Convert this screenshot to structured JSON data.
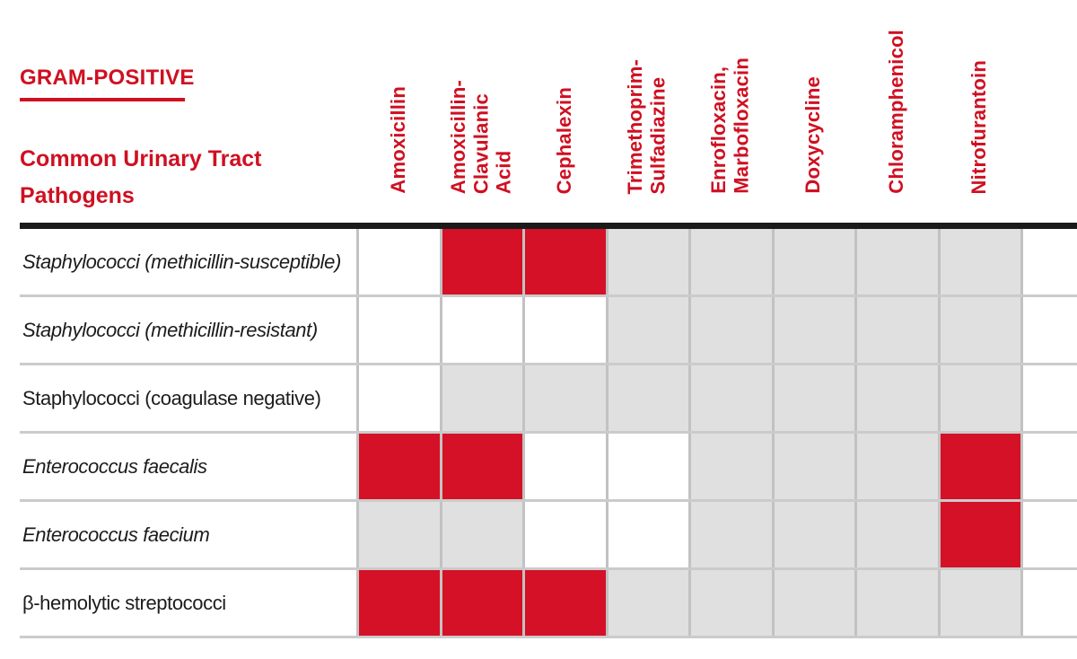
{
  "header": {
    "section": "GRAM-POSITIVE",
    "subtitle_lines": [
      "Common Urinary Tract",
      "Pathogens"
    ]
  },
  "columns": [
    {
      "name": "amoxicillin",
      "lines": [
        "Amoxicillin"
      ]
    },
    {
      "name": "amoxicillin-clavulanic-acid",
      "lines": [
        "Amoxicillin-",
        "Clavulanic",
        "Acid"
      ]
    },
    {
      "name": "cephalexin",
      "lines": [
        "Cephalexin"
      ]
    },
    {
      "name": "trimethoprim-sulfadiazine",
      "lines": [
        "Trimethoprim-",
        "Sulfadiazine"
      ]
    },
    {
      "name": "enrofloxacin-marbofloxacin",
      "lines": [
        "Enrofloxacin,",
        "Marbofloxacin"
      ]
    },
    {
      "name": "doxycycline",
      "lines": [
        "Doxycycline"
      ]
    },
    {
      "name": "chloramphenicol",
      "lines": [
        "Chloramphenicol"
      ]
    },
    {
      "name": "nitrofurantoin",
      "lines": [
        "Nitrofurantoin"
      ]
    }
  ],
  "rows": [
    {
      "pathogen": "Staphylococci (methicillin-susceptible)",
      "italic": true,
      "cells": [
        "white",
        "red",
        "red",
        "gray",
        "gray",
        "gray",
        "gray",
        "gray"
      ]
    },
    {
      "pathogen": "Staphylococci (methicillin-resistant)",
      "italic": true,
      "cells": [
        "white",
        "white",
        "white",
        "gray",
        "gray",
        "gray",
        "gray",
        "gray"
      ]
    },
    {
      "pathogen": "Staphylococci (coagulase negative)",
      "italic": false,
      "cells": [
        "white",
        "gray",
        "gray",
        "gray",
        "gray",
        "gray",
        "gray",
        "gray"
      ]
    },
    {
      "pathogen": "Enterococcus faecalis",
      "italic": true,
      "cells": [
        "red",
        "red",
        "white",
        "white",
        "gray",
        "gray",
        "gray",
        "red"
      ]
    },
    {
      "pathogen": "Enterococcus faecium",
      "italic": true,
      "cells": [
        "gray",
        "gray",
        "white",
        "white",
        "gray",
        "gray",
        "gray",
        "red"
      ]
    },
    {
      "pathogen": "β-hemolytic streptococci",
      "italic": false,
      "cells": [
        "red",
        "red",
        "red",
        "gray",
        "gray",
        "gray",
        "gray",
        "gray"
      ]
    }
  ],
  "colors": {
    "red-text": "#cf1021",
    "red-cell": "#d41126",
    "gray-cell": "#e0e0e0",
    "grid-line": "#c2c2c2",
    "row-line": "#cbcbcb",
    "bar-black": "#1a1a1a",
    "label-color": "#1c1c1c"
  },
  "chart_data": {
    "type": "heatmap",
    "title": "GRAM-POSITIVE — Common Urinary Tract Pathogens",
    "x_categories": [
      "Amoxicillin",
      "Amoxicillin-Clavulanic Acid",
      "Cephalexin",
      "Trimethoprim-Sulfadiazine",
      "Enrofloxacin, Marbofloxacin",
      "Doxycycline",
      "Chloramphenicol",
      "Nitrofurantoin"
    ],
    "y_categories": [
      "Staphylococci (methicillin-susceptible)",
      "Staphylococci (methicillin-resistant)",
      "Staphylococci (coagulase negative)",
      "Enterococcus faecalis",
      "Enterococcus faecium",
      "β-hemolytic streptococci"
    ],
    "values": [
      [
        "white",
        "red",
        "red",
        "gray",
        "gray",
        "gray",
        "gray",
        "gray"
      ],
      [
        "white",
        "white",
        "white",
        "gray",
        "gray",
        "gray",
        "gray",
        "gray"
      ],
      [
        "white",
        "gray",
        "gray",
        "gray",
        "gray",
        "gray",
        "gray",
        "gray"
      ],
      [
        "red",
        "red",
        "white",
        "white",
        "gray",
        "gray",
        "gray",
        "red"
      ],
      [
        "gray",
        "gray",
        "white",
        "white",
        "gray",
        "gray",
        "gray",
        "red"
      ],
      [
        "red",
        "red",
        "red",
        "gray",
        "gray",
        "gray",
        "gray",
        "gray"
      ]
    ],
    "cell_palette": {
      "red": "#d41126",
      "gray": "#e0e0e0",
      "white": "#ffffff"
    },
    "legend_position": "none",
    "grid": true
  }
}
